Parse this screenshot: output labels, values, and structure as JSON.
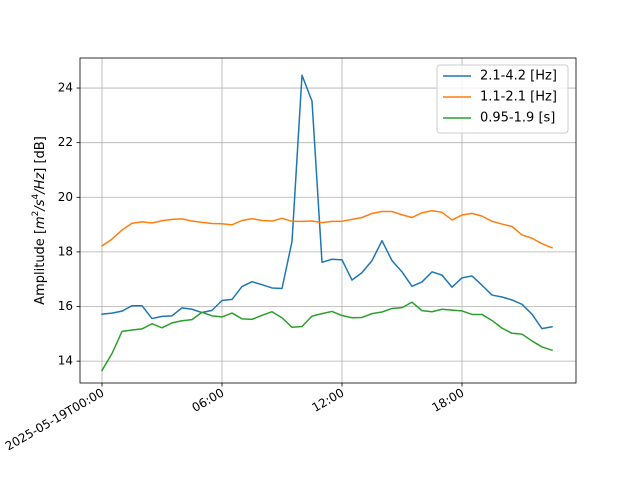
{
  "chart_data": {
    "type": "line",
    "title": "",
    "xlabel": "",
    "ylabel": "Amplitude [m²/s⁴/Hz] [dB]",
    "ylabel_parts": {
      "pre": "Amplitude [",
      "m": "m",
      "sq": "2",
      "s": "/s",
      "four": "4",
      "hz": "/Hz",
      "post": "] [dB]"
    },
    "x_unit": "hours since 2025-05-19T00:00",
    "xlim": [
      -1.1,
      23.7
    ],
    "ylim": [
      13.2,
      25.1
    ],
    "x_ticks": [
      {
        "value": 0,
        "label": "2025-05-19T00:00"
      },
      {
        "value": 6,
        "label": "06:00"
      },
      {
        "value": 12,
        "label": "12:00"
      },
      {
        "value": 18,
        "label": "18:00"
      }
    ],
    "y_ticks": [
      {
        "value": 14,
        "label": "14"
      },
      {
        "value": 16,
        "label": "16"
      },
      {
        "value": 18,
        "label": "18"
      },
      {
        "value": 20,
        "label": "20"
      },
      {
        "value": 22,
        "label": "22"
      },
      {
        "value": 24,
        "label": "24"
      }
    ],
    "grid": true,
    "legend_position": "top-right",
    "x": [
      0,
      0.5,
      1,
      1.5,
      2,
      2.5,
      3,
      3.5,
      4,
      4.5,
      5,
      5.5,
      6,
      6.5,
      7,
      7.5,
      8,
      8.5,
      9,
      9.5,
      10,
      10.5,
      11,
      11.5,
      12,
      12.5,
      13,
      13.5,
      14,
      14.5,
      15,
      15.5,
      16,
      16.5,
      17,
      17.5,
      18,
      18.5,
      19,
      19.5,
      20,
      20.5,
      21,
      21.5,
      22,
      22.5
    ],
    "series": [
      {
        "name": "2.1-4.2 [Hz]",
        "color": "#1f77b4",
        "values": [
          15.72,
          15.76,
          15.83,
          16.03,
          16.03,
          15.56,
          15.64,
          15.66,
          15.95,
          15.9,
          15.78,
          15.86,
          16.22,
          16.26,
          16.73,
          16.91,
          16.8,
          16.68,
          16.66,
          18.38,
          24.47,
          23.52,
          17.62,
          17.73,
          17.71,
          16.97,
          17.24,
          17.68,
          18.41,
          17.68,
          17.27,
          16.74,
          16.9,
          17.27,
          17.15,
          16.71,
          17.05,
          17.12,
          16.78,
          16.42,
          16.35,
          16.24,
          16.08,
          15.72,
          15.19,
          15.26
        ]
      },
      {
        "name": "1.1-2.1 [Hz]",
        "color": "#ff7f0e",
        "values": [
          18.22,
          18.47,
          18.8,
          19.05,
          19.1,
          19.06,
          19.14,
          19.19,
          19.21,
          19.13,
          19.08,
          19.04,
          19.03,
          18.99,
          19.15,
          19.22,
          19.15,
          19.13,
          19.23,
          19.12,
          19.12,
          19.13,
          19.07,
          19.12,
          19.12,
          19.19,
          19.26,
          19.41,
          19.48,
          19.48,
          19.36,
          19.26,
          19.43,
          19.51,
          19.45,
          19.17,
          19.35,
          19.41,
          19.31,
          19.12,
          19.02,
          18.93,
          18.62,
          18.5,
          18.3,
          18.15
        ]
      },
      {
        "name": "0.95-1.9 [s]",
        "color": "#2ca02c",
        "values": [
          13.66,
          14.28,
          15.09,
          15.14,
          15.18,
          15.37,
          15.22,
          15.4,
          15.48,
          15.52,
          15.79,
          15.66,
          15.62,
          15.76,
          15.55,
          15.53,
          15.68,
          15.81,
          15.59,
          15.24,
          15.27,
          15.65,
          15.74,
          15.82,
          15.67,
          15.59,
          15.6,
          15.74,
          15.8,
          15.93,
          15.96,
          16.16,
          15.85,
          15.81,
          15.9,
          15.87,
          15.84,
          15.71,
          15.71,
          15.49,
          15.21,
          15.02,
          14.99,
          14.74,
          14.52,
          14.4
        ]
      }
    ]
  }
}
